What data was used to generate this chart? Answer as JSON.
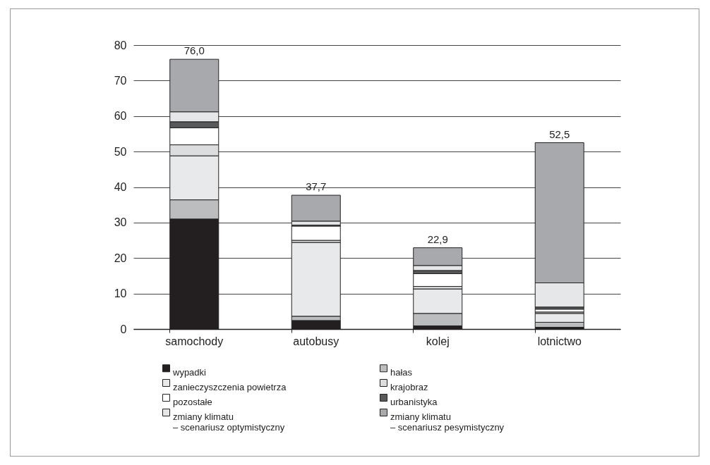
{
  "chart_data": {
    "type": "bar",
    "stacked": true,
    "categories": [
      "samochody",
      "autobusy",
      "kolej",
      "lotnictwo"
    ],
    "series": [
      {
        "name": "wypadki",
        "color": "#231f20",
        "values": [
          31.0,
          2.4,
          0.9,
          0.5
        ]
      },
      {
        "name": "hałas",
        "color": "#bbbdbf",
        "values": [
          5.4,
          1.2,
          3.5,
          1.4
        ]
      },
      {
        "name": "zanieczyszczenia powietrza",
        "color": "#e8e9ea",
        "values": [
          12.4,
          20.8,
          6.9,
          2.5
        ]
      },
      {
        "name": "krajobraz",
        "color": "#dcdddf",
        "values": [
          3.1,
          0.6,
          0.7,
          0.4
        ]
      },
      {
        "name": "pozostałe",
        "color": "#ffffff",
        "values": [
          4.8,
          4.0,
          3.6,
          0.8
        ]
      },
      {
        "name": "urbanistyka",
        "color": "#58595b",
        "values": [
          1.7,
          0.3,
          0.9,
          0.6
        ]
      },
      {
        "name": "zmiany klimatu\n– scenariusz optymistyczny",
        "color": "#e6e7e8",
        "values": [
          2.8,
          1.1,
          1.4,
          6.8
        ]
      },
      {
        "name": "zmiany klimatu\n– scenariusz pesymistyczny",
        "color": "#a7a9ac",
        "values": [
          14.8,
          7.3,
          5.0,
          39.5
        ]
      }
    ],
    "totals": [
      "76,0",
      "37,7",
      "22,9",
      "52,5"
    ],
    "ylim": [
      0,
      80
    ],
    "yticks": [
      0,
      10,
      20,
      30,
      40,
      50,
      60,
      70,
      80
    ],
    "grid": "y",
    "legend": "bottom"
  }
}
